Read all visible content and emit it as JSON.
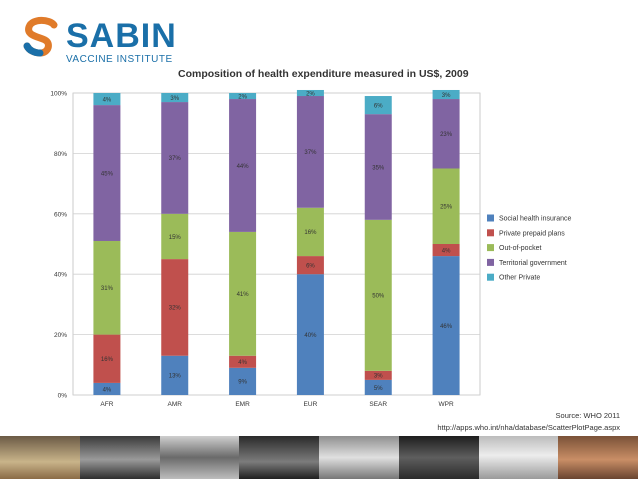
{
  "brand": {
    "name": "SABIN",
    "tagline": "VACCINE INSTITUTE",
    "colors": {
      "primary": "#1a6fa8",
      "accent": "#e07b2a"
    }
  },
  "source": {
    "line1": "Source: WHO 2011",
    "line2": "http://apps.who.int/nha/database/ScatterPlotPage.aspx"
  },
  "chart_data": {
    "type": "bar",
    "stacked": true,
    "title": "Composition of health expenditure measured in US$, 2009",
    "xlabel": "",
    "ylabel": "",
    "ylim": [
      0,
      100
    ],
    "yticks": [
      "0%",
      "20%",
      "40%",
      "60%",
      "80%",
      "100%"
    ],
    "grid": true,
    "legend_position": "right",
    "categories": [
      "AFR",
      "AMR",
      "EMR",
      "EUR",
      "SEAR",
      "WPR"
    ],
    "series": [
      {
        "name": "Social health insurance",
        "color": "#4f81bd",
        "values": [
          4,
          13,
          9,
          40,
          5,
          46
        ],
        "labels": [
          "4%",
          "13%",
          "9%",
          "40%",
          "5%",
          "46%"
        ]
      },
      {
        "name": "Private prepaid plans",
        "color": "#c0504d",
        "values": [
          16,
          32,
          4,
          6,
          3,
          4
        ],
        "labels": [
          "16%",
          "32%",
          "4%",
          "6%",
          "3%",
          "4%"
        ]
      },
      {
        "name": "Out-of-pocket",
        "color": "#9bbb59",
        "values": [
          31,
          15,
          41,
          16,
          50,
          25
        ],
        "labels": [
          "31%",
          "15%",
          "41%",
          "16%",
          "50%",
          "25%"
        ]
      },
      {
        "name": "Territorial government",
        "color": "#8064a2",
        "values": [
          45,
          37,
          44,
          37,
          35,
          23
        ],
        "labels": [
          "45%",
          "37%",
          "44%",
          "37%",
          "35%",
          "23%"
        ]
      },
      {
        "name": "Other Private",
        "color": "#4bacc6",
        "values": [
          4,
          3,
          2,
          2,
          6,
          3
        ],
        "labels": [
          "4%",
          "3%",
          "2%",
          "2%",
          "6%",
          "3%"
        ]
      }
    ]
  }
}
